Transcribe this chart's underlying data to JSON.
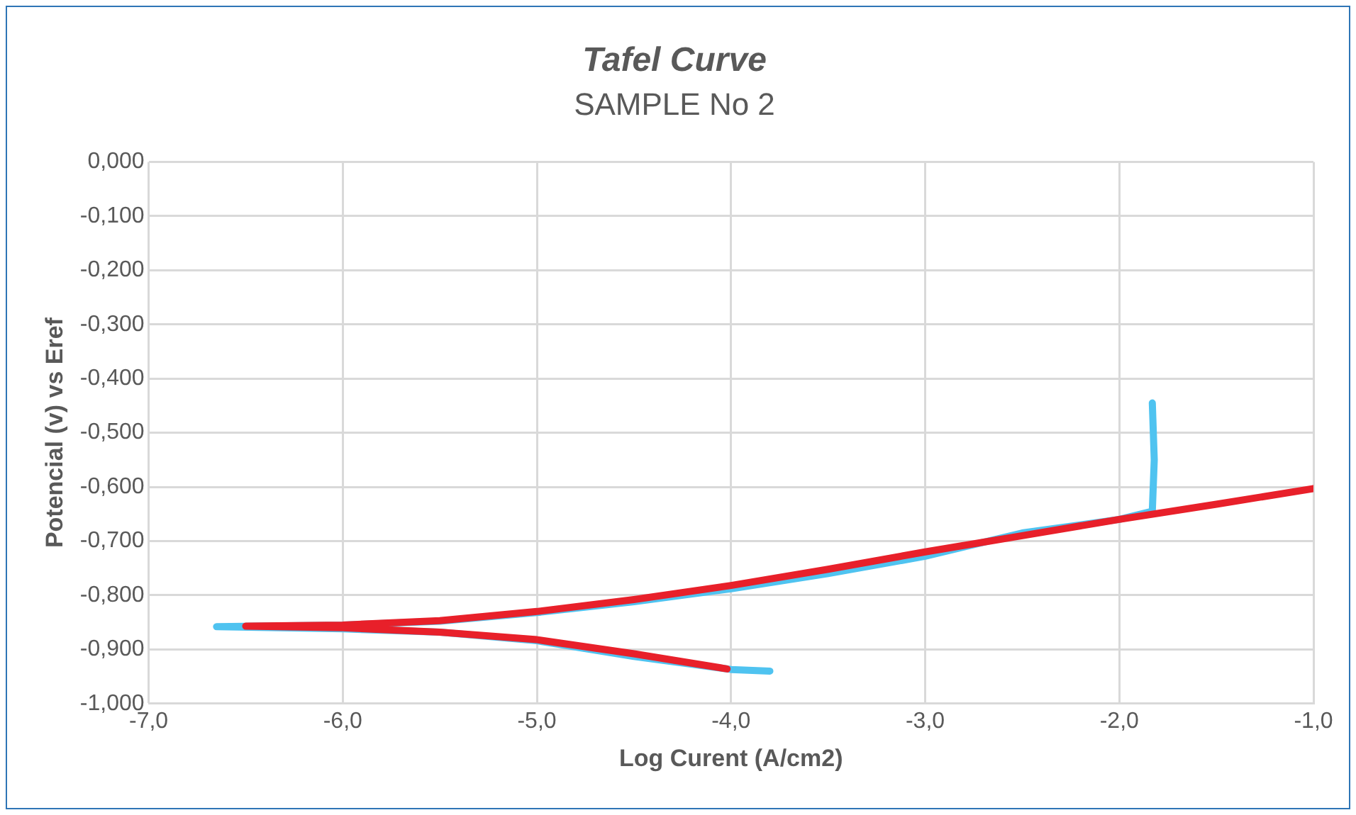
{
  "chart_data": {
    "type": "line",
    "title": "Tafel Curve",
    "subtitle": "SAMPLE No 2",
    "xlabel": "Log Curent (A/cm2)",
    "ylabel": "Potencial (v) vs Eref",
    "xlim": [
      -7,
      -1
    ],
    "ylim": [
      -1,
      0
    ],
    "xticks": [
      {
        "value": -7,
        "label": "-7,0"
      },
      {
        "value": -6,
        "label": "-6,0"
      },
      {
        "value": -5,
        "label": "-5,0"
      },
      {
        "value": -4,
        "label": "-4,0"
      },
      {
        "value": -3,
        "label": "-3,0"
      },
      {
        "value": -2,
        "label": "-2,0"
      },
      {
        "value": -1,
        "label": "-1,0"
      }
    ],
    "yticks": [
      {
        "value": 0,
        "label": "0,000"
      },
      {
        "value": -0.1,
        "label": "-0,100"
      },
      {
        "value": -0.2,
        "label": "-0,200"
      },
      {
        "value": -0.3,
        "label": "-0,300"
      },
      {
        "value": -0.4,
        "label": "-0,400"
      },
      {
        "value": -0.5,
        "label": "-0,500"
      },
      {
        "value": -0.6,
        "label": "-0,600"
      },
      {
        "value": -0.7,
        "label": "-0,700"
      },
      {
        "value": -0.8,
        "label": "-0,800"
      },
      {
        "value": -0.9,
        "label": "-0,900"
      },
      {
        "value": -1,
        "label": "-1,000"
      }
    ],
    "grid": true,
    "legend": false,
    "marker": "none",
    "line_style": "solid",
    "series": [
      {
        "color": "#4fc3f0",
        "x": [
          -3.8,
          -4.0,
          -4.5,
          -5.0,
          -5.5,
          -6.0,
          -6.65,
          -6.0,
          -5.5,
          -5.0,
          -4.5,
          -4.0,
          -3.5,
          -3.0,
          -2.5,
          -2.0,
          -1.83,
          -1.82,
          -1.83
        ],
        "values": [
          -0.94,
          -0.937,
          -0.913,
          -0.884,
          -0.868,
          -0.862,
          -0.858,
          -0.855,
          -0.848,
          -0.832,
          -0.812,
          -0.788,
          -0.76,
          -0.728,
          -0.685,
          -0.66,
          -0.645,
          -0.55,
          -0.445
        ]
      },
      {
        "color": "#e8202a",
        "x": [
          -4.02,
          -4.5,
          -5.0,
          -5.5,
          -6.0,
          -6.5,
          -6.0,
          -5.5,
          -5.0,
          -4.5,
          -4.0,
          -3.5,
          -3.0,
          -2.5,
          -2.0,
          -1.5,
          -1.0
        ],
        "values": [
          -0.936,
          -0.908,
          -0.882,
          -0.868,
          -0.86,
          -0.857,
          -0.855,
          -0.847,
          -0.83,
          -0.808,
          -0.782,
          -0.752,
          -0.72,
          -0.69,
          -0.66,
          -0.632,
          -0.603
        ]
      }
    ]
  }
}
